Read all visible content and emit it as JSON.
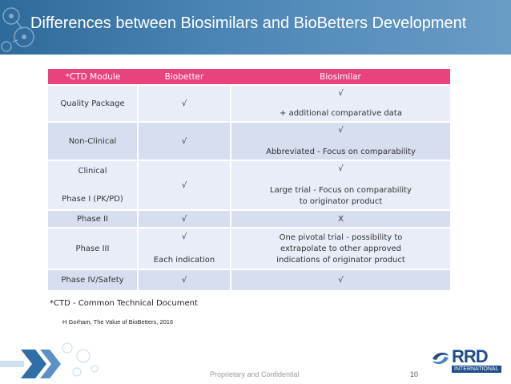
{
  "slide": {
    "title": "Differences between Biosimilars and BioBetters Development",
    "footnote": "*CTD - Common Technical Document",
    "citation": "H Gorham, The Value of BioBetters, 2016",
    "confidential": "Proprietary and Confidential",
    "page_number": "10",
    "logo_text": "RRD",
    "logo_subtext": "INTERNATIONAL"
  },
  "table": {
    "headers": [
      "*CTD Module",
      "Biobetter",
      "Biosimilar"
    ],
    "rows": [
      {
        "module": [
          "Quality Package"
        ],
        "biobetter": [
          "√"
        ],
        "biosimilar": [
          "√",
          "+ additional comparative data"
        ]
      },
      {
        "module": [
          "Non-Clinical"
        ],
        "biobetter": [
          "√"
        ],
        "biosimilar": [
          "√",
          "Abbreviated - Focus on comparability"
        ]
      },
      {
        "module": [
          "Clinical",
          "Phase I (PK/PD)"
        ],
        "biobetter": [
          "√"
        ],
        "biosimilar": [
          "√",
          "Large trial - Focus on comparability",
          "to originator product"
        ]
      },
      {
        "module": [
          "Phase II"
        ],
        "biobetter": [
          "√"
        ],
        "biosimilar": [
          "X"
        ]
      },
      {
        "module": [
          "Phase III"
        ],
        "biobetter": [
          "√",
          "Each indication"
        ],
        "biosimilar": [
          "One pivotal trial - possibility to",
          "extrapolate to other approved",
          "indications of originator product"
        ]
      },
      {
        "module": [
          "Phase IV/Safety"
        ],
        "biobetter": [
          "√"
        ],
        "biosimilar": [
          "√"
        ]
      }
    ]
  },
  "colors": {
    "header_bg": "#2e6a9a",
    "table_header": "#e8437d",
    "row_light": "#e9edf7",
    "row_dark": "#d6deef",
    "logo_blue": "#1f4e8c"
  }
}
